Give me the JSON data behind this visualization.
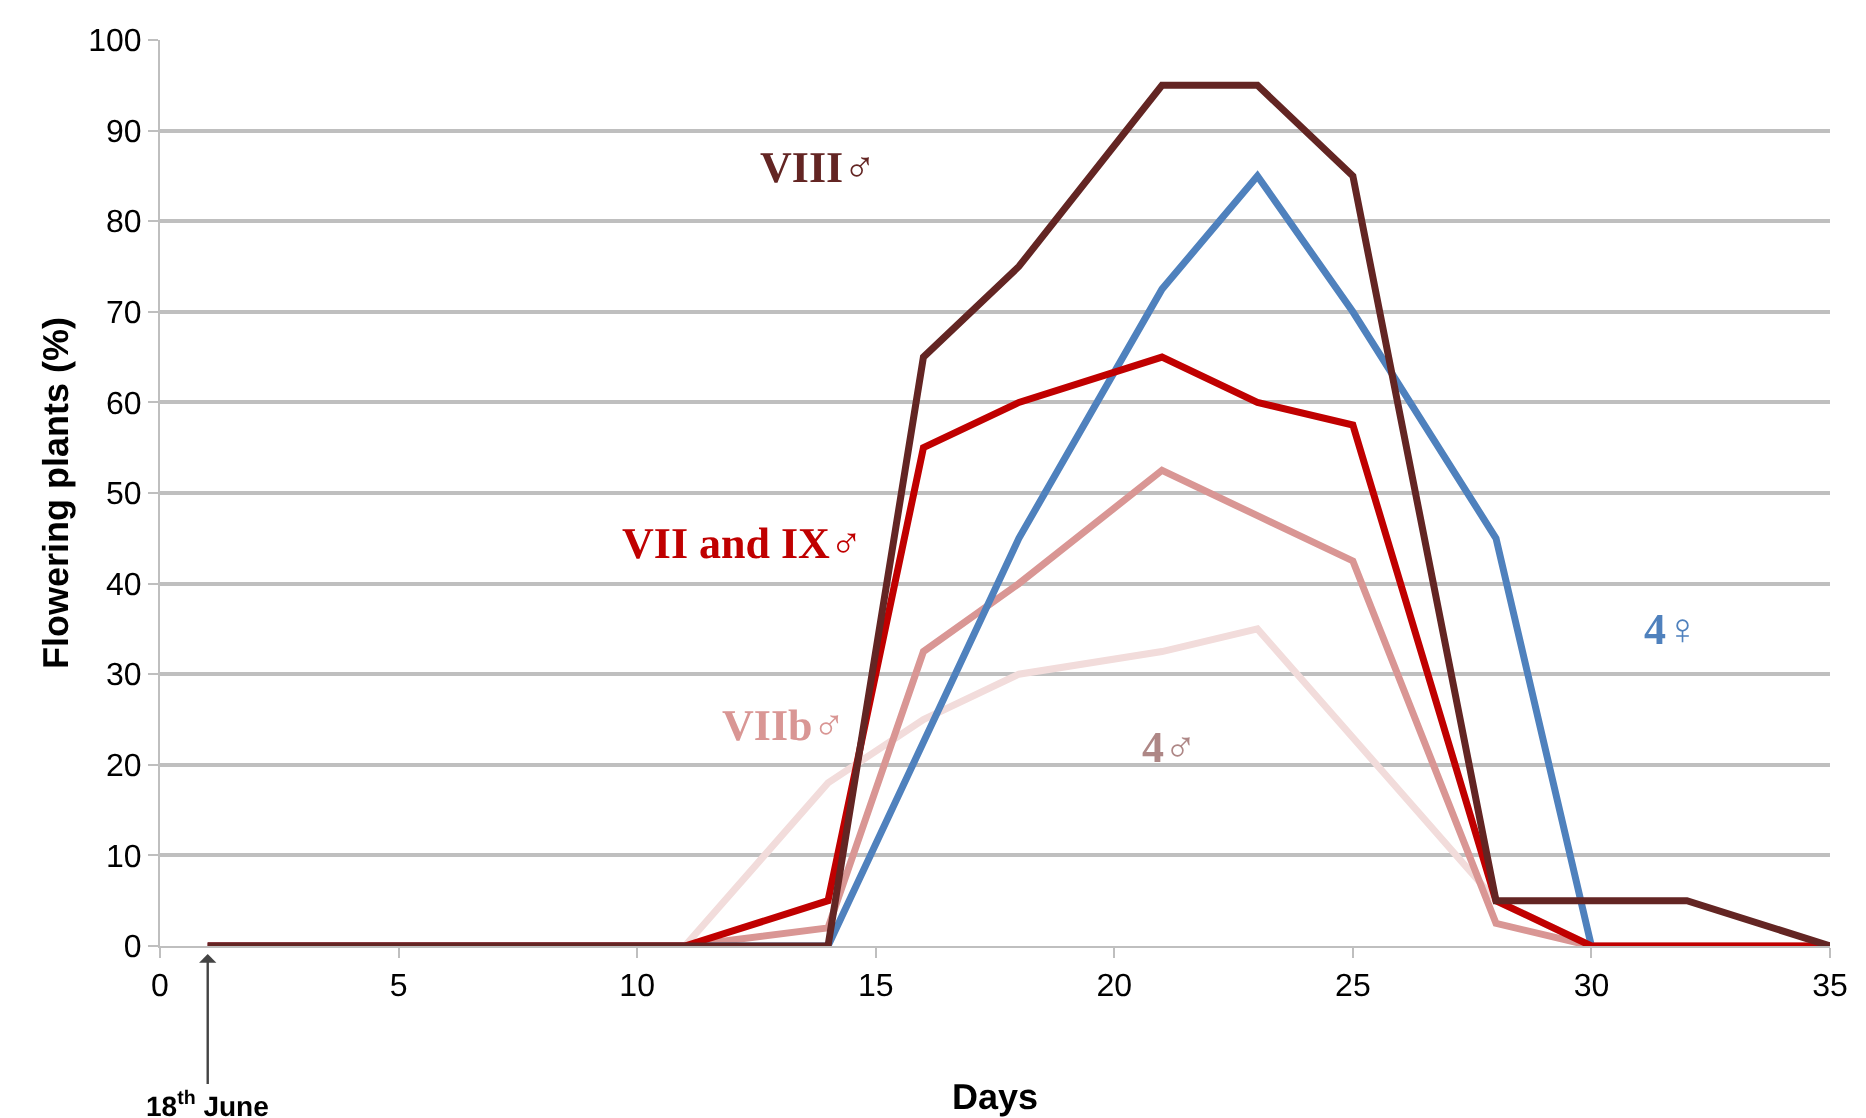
{
  "chart_data": {
    "type": "line",
    "xlabel": "Days",
    "ylabel": "Flowering plants (%)",
    "xlim": [
      0,
      35
    ],
    "xticks": [
      0,
      5,
      10,
      15,
      20,
      25,
      30,
      35
    ],
    "ylim": [
      0,
      100
    ],
    "yticks": [
      0,
      10,
      20,
      30,
      40,
      50,
      60,
      70,
      80,
      90,
      100
    ],
    "grid": "y",
    "legend": false,
    "marker": "none",
    "line_style": "solid",
    "series": [
      {
        "name": "4♂",
        "color": "#f2dcdb",
        "x": [
          1,
          11,
          14,
          16,
          18,
          21,
          23,
          28,
          30,
          35
        ],
        "values": [
          0,
          0,
          18,
          25,
          30,
          32.5,
          35,
          5,
          0,
          0
        ]
      },
      {
        "name": "VIIb♂",
        "color": "#d99694",
        "x": [
          1,
          11,
          14,
          16,
          18,
          21,
          23,
          25,
          28,
          30,
          35
        ],
        "values": [
          0,
          0,
          2,
          32.5,
          40,
          52.5,
          47.5,
          42.5,
          2.5,
          0,
          0
        ]
      },
      {
        "name": "4♀",
        "color": "#4f81bd",
        "x": [
          1,
          11,
          14,
          18,
          21,
          23,
          25,
          28,
          30
        ],
        "values": [
          0,
          0,
          0,
          45,
          72.5,
          85,
          70,
          45,
          0
        ]
      },
      {
        "name": "VII and IX♂",
        "color": "#c00000",
        "x": [
          1,
          11,
          14,
          16,
          18,
          21,
          23,
          25,
          28,
          30,
          35
        ],
        "values": [
          0,
          0,
          5,
          55,
          60,
          65,
          60,
          57.5,
          5,
          0,
          0
        ]
      },
      {
        "name": "VIII♂",
        "color": "#632523",
        "x": [
          1,
          11,
          14,
          16,
          18,
          21,
          23,
          25,
          28,
          30,
          32,
          35
        ],
        "values": [
          0,
          0,
          0,
          65,
          75,
          95,
          95,
          85,
          5,
          5,
          5,
          0
        ]
      }
    ],
    "annotations": [
      {
        "text": "18$^{th}$ June",
        "x": 1,
        "y": 0
      }
    ]
  }
}
